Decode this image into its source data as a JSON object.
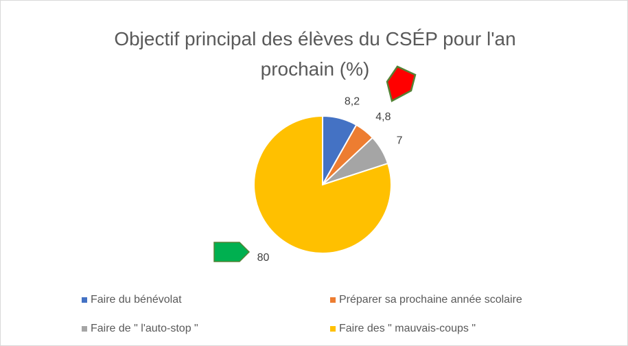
{
  "chart_data": {
    "type": "pie",
    "title": "Objectif principal des élèves du CSÉP pour l'an prochain (%)",
    "categories": [
      "Faire du bénévolat",
      "Préparer sa prochaine année scolaire",
      "Faire de \" l'auto-stop \"",
      "Faire des \" mauvais-coups \""
    ],
    "values": [
      8.2,
      4.8,
      7,
      80
    ],
    "value_labels": [
      "8,2",
      "4,8",
      "7",
      "80"
    ],
    "colors": [
      "#4472c4",
      "#ed7d31",
      "#a5a5a5",
      "#ffc000"
    ],
    "legend": "bottom"
  }
}
